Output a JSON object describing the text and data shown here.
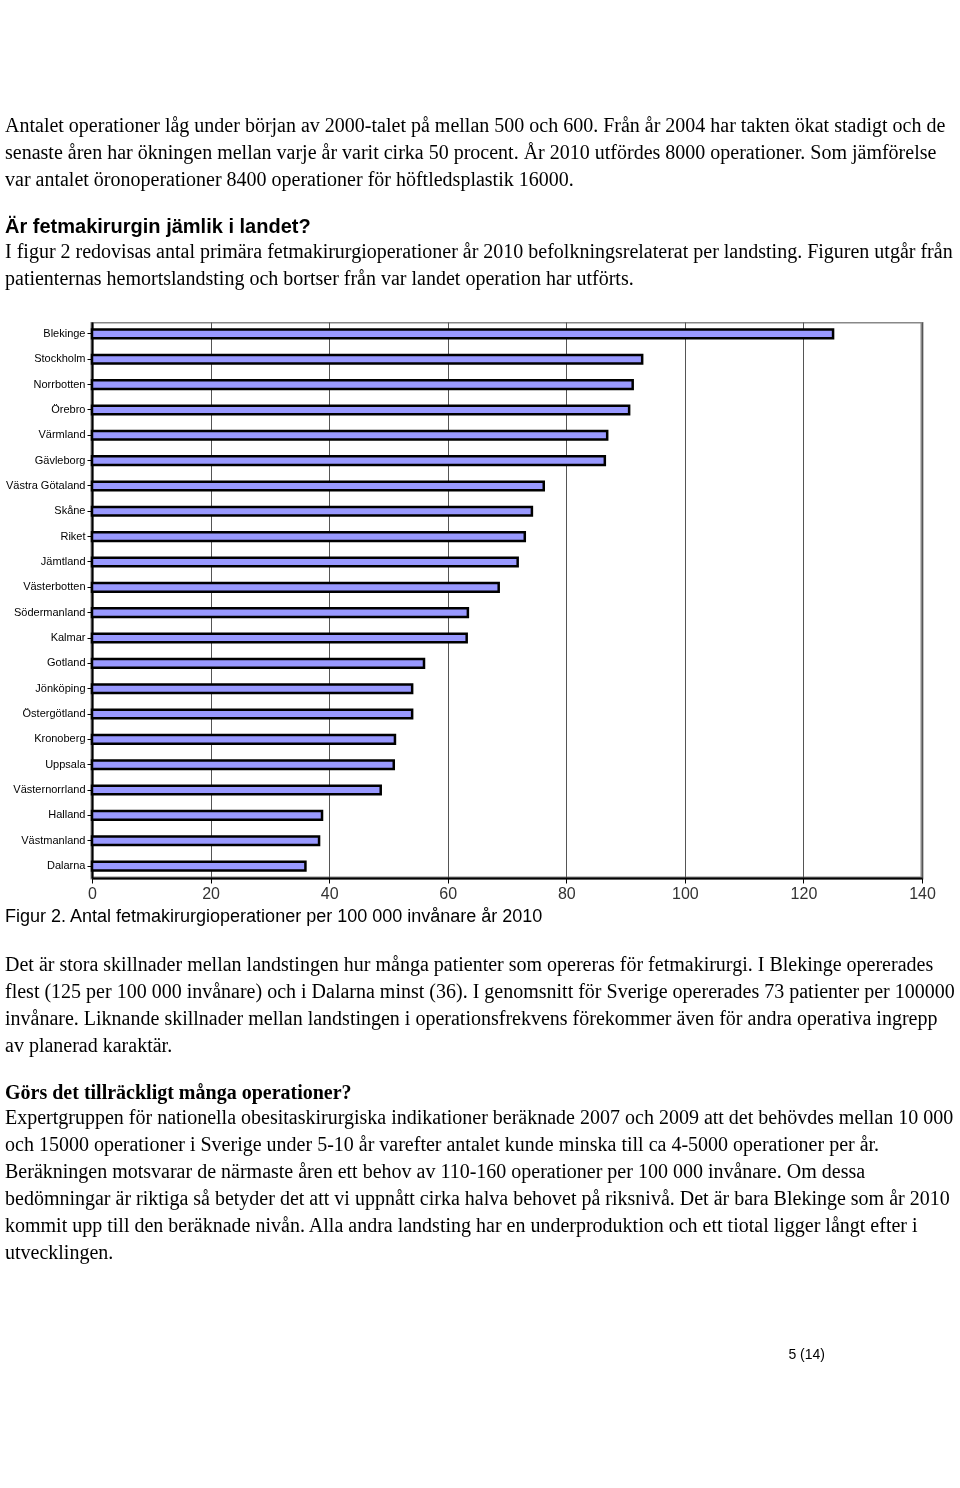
{
  "chart_data": {
    "type": "bar",
    "orientation": "horizontal",
    "title": "Figur 2. Antal fetmakirurgioperationer per 100 000 invånare år 2010",
    "categories": [
      "Blekinge",
      "Stockholm",
      "Norrbotten",
      "Örebro",
      "Värmland",
      "Gävleborg",
      "Västra Götaland",
      "Skåne",
      "Riket",
      "Jämtland",
      "Västerbotten",
      "Södermanland",
      "Kalmar",
      "Gotland",
      "Jönköping",
      "Östergötland",
      "Kronoberg",
      "Uppsala",
      "Västernorrland",
      "Halland",
      "Västmanland",
      "Dalarna"
    ],
    "values": [
      125,
      92.8,
      91.2,
      90.6,
      86.9,
      86.5,
      76.2,
      74.2,
      73,
      71.8,
      68.6,
      63.4,
      63.2,
      56,
      54,
      54,
      51.1,
      50.9,
      48.7,
      38.8,
      38.3,
      36
    ],
    "color": "#9999ff",
    "xlim": [
      0,
      140
    ],
    "xticks": [
      0,
      20,
      40,
      60,
      80,
      100,
      120,
      140
    ],
    "grid": "x",
    "annotations": [
      "Antalet operationer låg under början av 2000-talet på mellan 500 och 600. Från år 2004 har takten ökat stadigt och de senaste åren har ökningen mellan varje år varit cirka 50 procent. År 2010 utfördes 8000 operationer. Som jämförelse var antalet öronoperationer 8400 operationer för höftledsplastik 16000.",
      "Är fetmakirurgin jämlik i landet?",
      "I figur 2 redovisas antal primära fetmakirurgioperationer år 2010 befolkningsrelaterat per landsting. Figuren utgår från patienternas hemortslandsting och bortser från var landet operation har utförts.",
      "Det är stora skillnader mellan landstingen hur många patienter som opereras för fetmakirurgi. I Blekinge opererades flest (125 per 100 000 invånare) och i Dalarna minst (36). I genomsnitt för Sverige opererades 73 patienter per 100000 invånare. Liknande skillnader mellan landstingen i operationsfrekvens förekommer även för andra operativa ingrepp av planerad karaktär.",
      "Görs det tillräckligt många operationer?",
      "Expertgruppen för nationella obesitaskirurgiska indikationer beräknade 2007 och 2009 att det behövdes mellan 10 000 och 15000 operationer i Sverige under 5-10 år varefter antalet kunde minska till ca 4-5000 operationer per år. Beräkningen motsvarar de närmaste åren ett behov av 110-160 operationer per 100 000 invånare. Om dessa bedömningar är riktiga så betyder det att vi uppnått cirka halva behovet på riksnivå. Det är bara Blekinge som år 2010 kommit upp till den beräknade nivån. Alla andra landsting har en underproduktion och ett tiotal ligger långt efter i utvecklingen.",
      "5 (14)"
    ]
  }
}
